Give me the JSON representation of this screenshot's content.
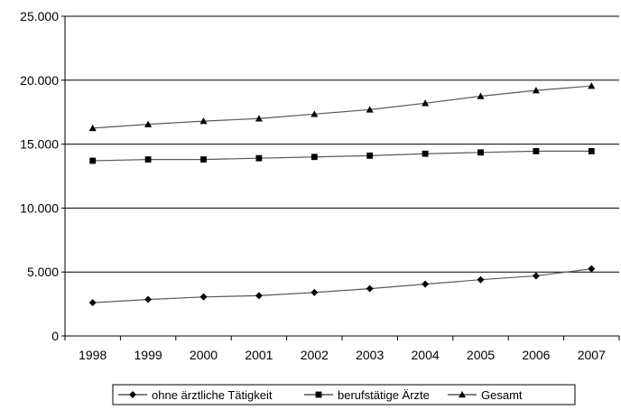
{
  "chart_data": {
    "type": "line",
    "title": "",
    "xlabel": "",
    "ylabel": "",
    "categories": [
      "1998",
      "1999",
      "2000",
      "2001",
      "2002",
      "2003",
      "2004",
      "2005",
      "2006",
      "2007"
    ],
    "ylim": [
      0,
      25000
    ],
    "yticks": [
      0,
      5000,
      10000,
      15000,
      20000,
      25000
    ],
    "ytick_labels": [
      "0",
      "5.000",
      "10.000",
      "15.000",
      "20.000",
      "25.000"
    ],
    "grid": true,
    "legend_position": "bottom",
    "series": [
      {
        "name": "ohne ärztliche Tätigkeit",
        "marker": "diamond",
        "color": "#000000",
        "values": [
          2600,
          2850,
          3050,
          3150,
          3400,
          3700,
          4050,
          4400,
          4700,
          5250
        ]
      },
      {
        "name": "berufstätige Ärzte",
        "marker": "square",
        "color": "#000000",
        "values": [
          13700,
          13800,
          13800,
          13900,
          14000,
          14100,
          14250,
          14350,
          14450,
          14450
        ]
      },
      {
        "name": "Gesamt",
        "marker": "triangle",
        "color": "#000000",
        "values": [
          16250,
          16550,
          16800,
          17000,
          17350,
          17700,
          18200,
          18750,
          19200,
          19550
        ]
      }
    ]
  }
}
